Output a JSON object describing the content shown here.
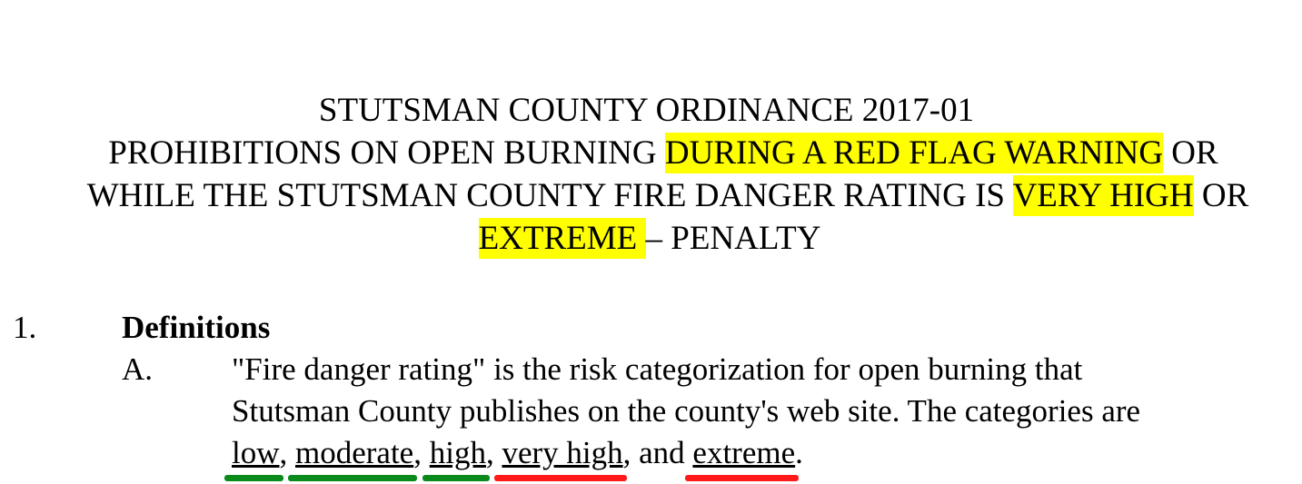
{
  "title": {
    "line1": "STUTSMAN COUNTY ORDINANCE 2017-01",
    "line2_pre": "PROHIBITIONS ON OPEN BURNING ",
    "line2_hl": "DURING A RED FLAG WARNING",
    "line2_post": " OR",
    "line3_pre": "WHILE THE STUTSMAN COUNTY FIRE DANGER RATING IS ",
    "line3_hl": "VERY HIGH",
    "line3_post": " OR",
    "line4_hl": "EXTREME ",
    "line4_post": "– PENALTY"
  },
  "section": {
    "number": "1.",
    "heading": "Definitions",
    "item": {
      "letter": "A.",
      "line1": "\"Fire danger rating\" is the risk categorization for open burning that",
      "line2": "Stutsman County publishes on the county's web site.  The categories are",
      "categories": [
        "low",
        "moderate",
        "high",
        "very high",
        "extreme"
      ],
      "sep1": ", ",
      "sep2": ", ",
      "sep3": ", ",
      "sep4": ", and ",
      "end": "."
    }
  },
  "colors": {
    "highlight": "#ffff00",
    "mark_green": "#0a8a1a",
    "mark_red": "#ff1a1a"
  }
}
